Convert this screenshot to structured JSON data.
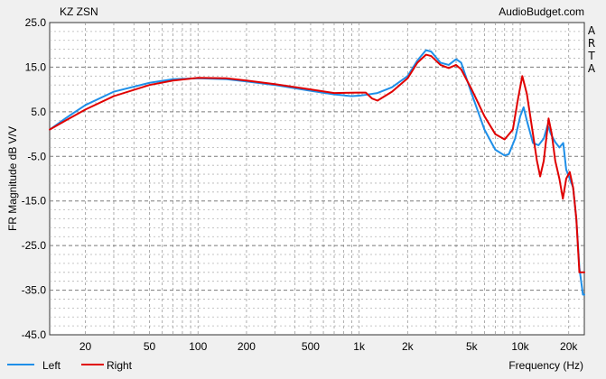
{
  "chart_data": {
    "type": "line",
    "title": "KZ ZSN",
    "watermark": "AudioBudget.com",
    "side_label": [
      "A",
      "R",
      "T",
      "A"
    ],
    "xlabel": "Frequency (Hz)",
    "ylabel": "FR Magnitude dB V/V",
    "x_scale": "log",
    "xlim": [
      12,
      25000
    ],
    "ylim": [
      -45,
      25
    ],
    "grid": true,
    "legend_position": "bottom-left",
    "x_ticks": [
      {
        "value": 20,
        "label": "20"
      },
      {
        "value": 50,
        "label": "50"
      },
      {
        "value": 100,
        "label": "100"
      },
      {
        "value": 200,
        "label": "200"
      },
      {
        "value": 500,
        "label": "500"
      },
      {
        "value": 1000,
        "label": "1k"
      },
      {
        "value": 2000,
        "label": "2k"
      },
      {
        "value": 5000,
        "label": "5k"
      },
      {
        "value": 10000,
        "label": "10k"
      },
      {
        "value": 20000,
        "label": "20k"
      }
    ],
    "y_ticks": [
      {
        "value": 25,
        "label": "25.0"
      },
      {
        "value": 15,
        "label": "15.0"
      },
      {
        "value": 5,
        "label": "5.0"
      },
      {
        "value": -5,
        "label": "-5.0"
      },
      {
        "value": -15,
        "label": "-15.0"
      },
      {
        "value": -25,
        "label": "-25.0"
      },
      {
        "value": -35,
        "label": "-35.0"
      },
      {
        "value": -45,
        "label": "-45.0"
      }
    ],
    "series": [
      {
        "name": "Left",
        "color": "#1f8fe8",
        "points": [
          [
            12,
            1.0
          ],
          [
            15,
            3.5
          ],
          [
            20,
            6.5
          ],
          [
            30,
            9.5
          ],
          [
            50,
            11.5
          ],
          [
            70,
            12.3
          ],
          [
            100,
            12.5
          ],
          [
            150,
            12.3
          ],
          [
            200,
            11.8
          ],
          [
            300,
            11.0
          ],
          [
            500,
            9.7
          ],
          [
            700,
            8.9
          ],
          [
            900,
            8.5
          ],
          [
            1000,
            8.6
          ],
          [
            1100,
            8.8
          ],
          [
            1300,
            9.2
          ],
          [
            1600,
            10.5
          ],
          [
            2000,
            13.0
          ],
          [
            2300,
            16.5
          ],
          [
            2600,
            18.8
          ],
          [
            2800,
            18.5
          ],
          [
            3200,
            16.0
          ],
          [
            3600,
            15.5
          ],
          [
            4000,
            16.8
          ],
          [
            4300,
            16.0
          ],
          [
            5000,
            9.0
          ],
          [
            6000,
            1.0
          ],
          [
            7000,
            -3.5
          ],
          [
            8000,
            -4.8
          ],
          [
            8500,
            -4.5
          ],
          [
            9300,
            -1.0
          ],
          [
            10000,
            4.0
          ],
          [
            10500,
            6.0
          ],
          [
            11000,
            3.0
          ],
          [
            12000,
            -2.0
          ],
          [
            13000,
            -2.5
          ],
          [
            14000,
            -1.0
          ],
          [
            14800,
            2.0
          ],
          [
            15500,
            0.0
          ],
          [
            16500,
            -1.8
          ],
          [
            17500,
            -3.0
          ],
          [
            18500,
            -2.0
          ],
          [
            19300,
            -8.0
          ],
          [
            20300,
            -10.0
          ],
          [
            21300,
            -12.0
          ],
          [
            22300,
            -19.0
          ],
          [
            23300,
            -30.0
          ],
          [
            24500,
            -36.0
          ],
          [
            25000,
            -36.0
          ]
        ]
      },
      {
        "name": "Right",
        "color": "#e00000",
        "points": [
          [
            12,
            1.0
          ],
          [
            15,
            3.0
          ],
          [
            20,
            5.5
          ],
          [
            30,
            8.5
          ],
          [
            50,
            11.0
          ],
          [
            70,
            12.0
          ],
          [
            100,
            12.6
          ],
          [
            150,
            12.5
          ],
          [
            200,
            12.0
          ],
          [
            300,
            11.2
          ],
          [
            500,
            10.0
          ],
          [
            700,
            9.2
          ],
          [
            1000,
            9.3
          ],
          [
            1100,
            9.3
          ],
          [
            1200,
            8.0
          ],
          [
            1300,
            7.5
          ],
          [
            1600,
            9.5
          ],
          [
            2000,
            12.5
          ],
          [
            2300,
            16.0
          ],
          [
            2600,
            17.8
          ],
          [
            2800,
            17.5
          ],
          [
            3200,
            15.5
          ],
          [
            3600,
            14.8
          ],
          [
            4000,
            15.5
          ],
          [
            4300,
            14.5
          ],
          [
            5000,
            10.0
          ],
          [
            6000,
            4.0
          ],
          [
            7000,
            0.0
          ],
          [
            8000,
            -1.2
          ],
          [
            9000,
            1.0
          ],
          [
            9700,
            8.0
          ],
          [
            10300,
            13.0
          ],
          [
            11000,
            9.0
          ],
          [
            12000,
            0.0
          ],
          [
            12700,
            -6.0
          ],
          [
            13300,
            -9.5
          ],
          [
            14000,
            -6.0
          ],
          [
            15000,
            3.5
          ],
          [
            15700,
            0.0
          ],
          [
            16500,
            -6.0
          ],
          [
            17500,
            -10.0
          ],
          [
            18400,
            -14.5
          ],
          [
            19300,
            -10.0
          ],
          [
            20300,
            -8.5
          ],
          [
            21300,
            -12.0
          ],
          [
            22300,
            -19.0
          ],
          [
            23300,
            -31.0
          ],
          [
            25000,
            -31.0
          ]
        ]
      }
    ]
  }
}
